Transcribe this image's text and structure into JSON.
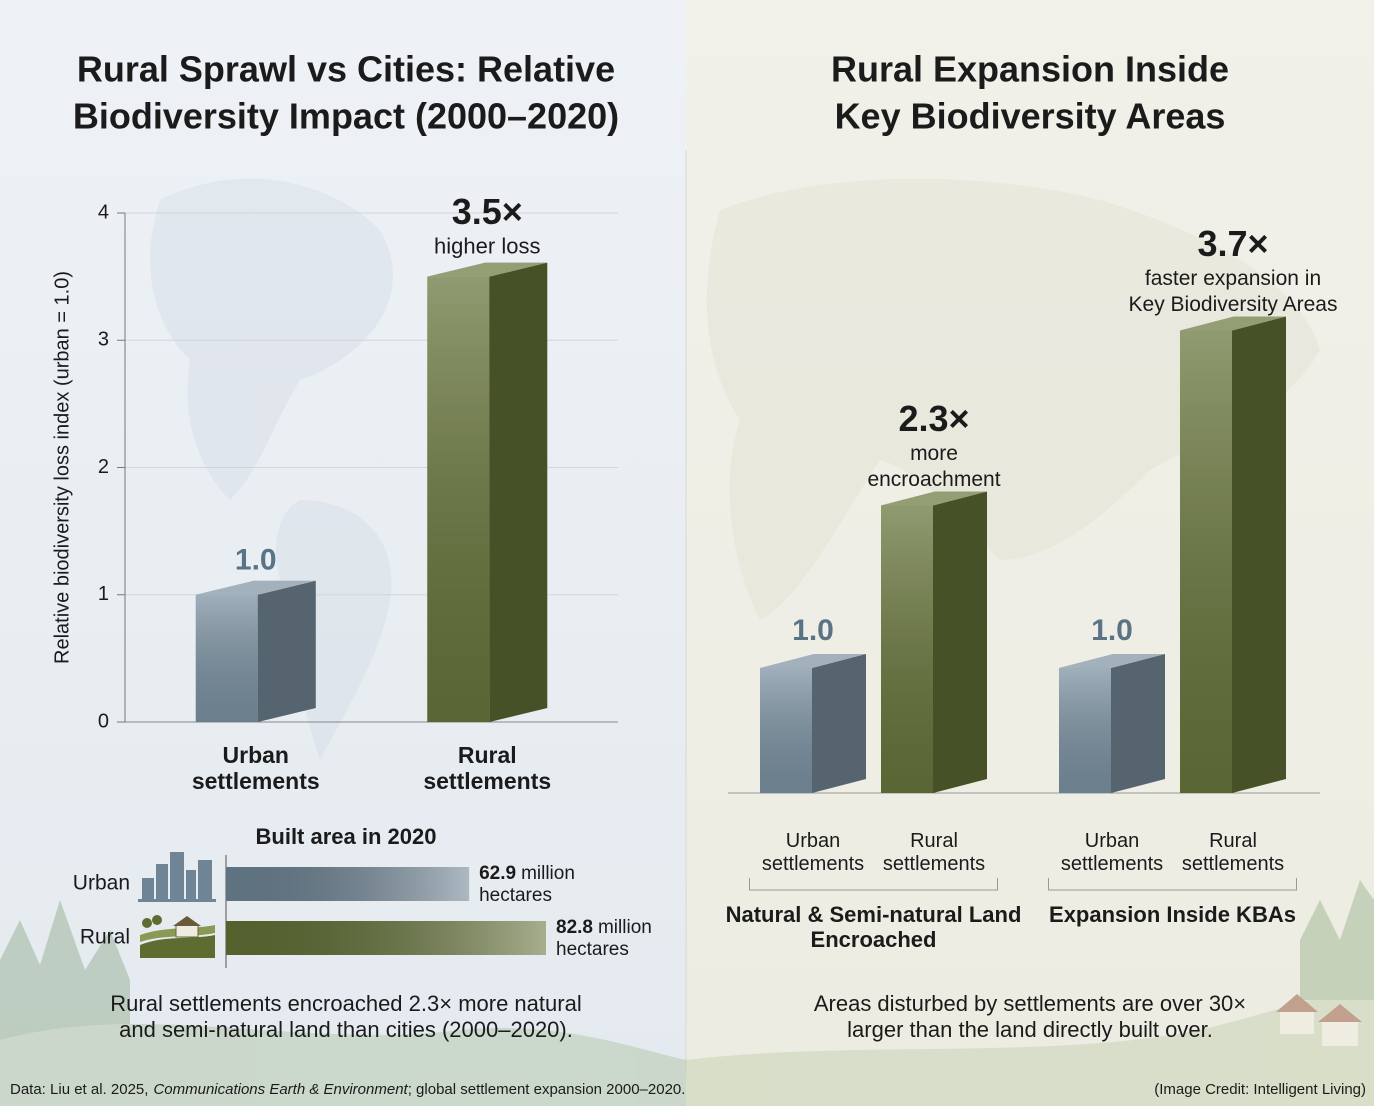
{
  "chart_data": [
    {
      "type": "bar3d",
      "title": [
        "Rural Sprawl vs Cities: Relative",
        "Biodiversity Impact (2000–2020)"
      ],
      "y_label": "Relative biodiversity loss index (urban = 1.0)",
      "categories": [
        "Urban settlements",
        "Rural settlements"
      ],
      "values": [
        1.0,
        3.5
      ],
      "value_labels": [
        "1.0",
        "3.5×"
      ],
      "annotation": "higher loss",
      "colors": [
        "#7a90a0",
        "#66743a"
      ],
      "ylim": [
        0,
        4
      ],
      "yticks": [
        0,
        1,
        2,
        3,
        4
      ],
      "grid": true
    },
    {
      "type": "hbar",
      "title": "Built area in 2020",
      "categories": [
        "Urban",
        "Rural"
      ],
      "values": [
        62.9,
        82.8
      ],
      "value_unit": [
        "million",
        "hectares"
      ],
      "colors": [
        "#6a8090",
        "#5e6c32"
      ],
      "caption": [
        "Rural settlements encroached 2.3× more natural",
        "and semi-natural land than cities (2000–2020)."
      ]
    },
    {
      "type": "grouped_bar3d",
      "title": [
        "Rural Expansion Inside",
        "Key Biodiversity Areas"
      ],
      "categories": [
        "Natural & Semi-natural Land Encroached",
        "Expansion Inside KBAs"
      ],
      "series": [
        {
          "name": "Urban settlements",
          "color": "#7a90a0",
          "values": [
            1.0,
            1.0
          ],
          "value_labels": [
            "1.0",
            "1.0"
          ]
        },
        {
          "name": "Rural settlements",
          "color": "#66743a",
          "values": [
            2.3,
            3.7
          ],
          "value_labels": [
            "2.3×",
            "3.7×"
          ],
          "annotations": [
            [
              "more",
              "encroachment"
            ],
            [
              "faster expansion in",
              "Key Biodiversity Areas"
            ]
          ]
        }
      ],
      "caption": [
        "Areas disturbed by settlements are over 30×",
        "larger than the land directly built over."
      ]
    }
  ],
  "footer": {
    "source": [
      "Data: Liu et al. 2025,",
      "Communications Earth & Environment",
      "; global settlement expansion 2000–2020."
    ],
    "credit": "(Image Credit: Intelligent Living)"
  }
}
